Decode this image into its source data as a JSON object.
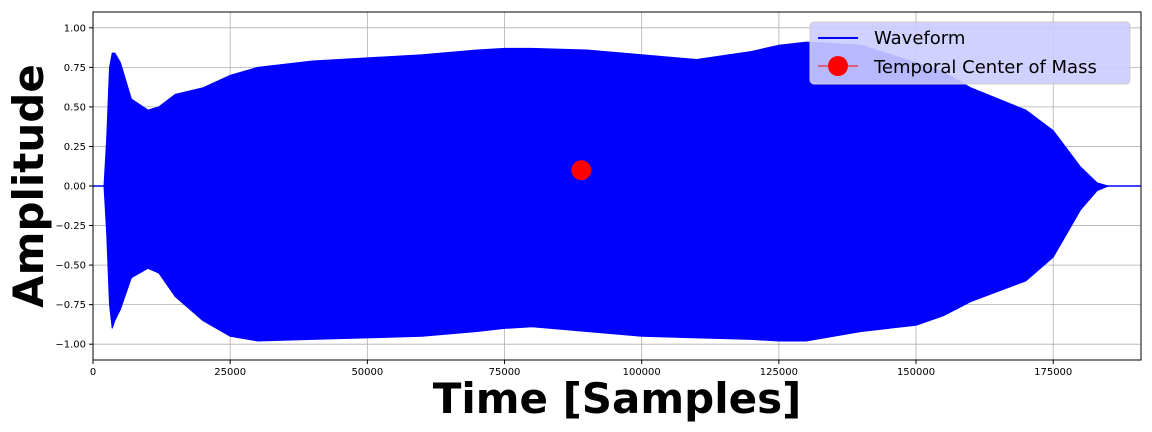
{
  "chart_data": {
    "type": "line",
    "title": "",
    "xlabel": "Time [Samples]",
    "ylabel": "Amplitude",
    "xlim": [
      0,
      191000
    ],
    "ylim": [
      -1.1,
      1.1
    ],
    "x_ticks": [
      0,
      25000,
      50000,
      75000,
      100000,
      125000,
      150000,
      175000
    ],
    "y_ticks": [
      -1.0,
      -0.75,
      -0.5,
      -0.25,
      0.0,
      0.25,
      0.5,
      0.75,
      1.0
    ],
    "x_tick_labels": [
      "0",
      "25000",
      "50000",
      "75000",
      "100000",
      "125000",
      "150000",
      "175000"
    ],
    "y_tick_labels": [
      "−1.00",
      "−0.75",
      "−0.50",
      "−0.25",
      "0.00",
      "0.25",
      "0.50",
      "0.75",
      "1.00"
    ],
    "grid": true,
    "legend_position": "top-right",
    "series": [
      {
        "name": "Waveform",
        "color": "#0000ff",
        "style": "filled-envelope",
        "envelope": {
          "x": [
            0,
            2000,
            2500,
            3000,
            3500,
            4000,
            5000,
            7000,
            10000,
            12000,
            15000,
            20000,
            25000,
            30000,
            40000,
            50000,
            60000,
            70000,
            75000,
            80000,
            90000,
            100000,
            110000,
            120000,
            125000,
            130000,
            135000,
            140000,
            150000,
            155000,
            160000,
            170000,
            175000,
            180000,
            183000,
            185000,
            187000,
            191000
          ],
          "upper": [
            0.0,
            0.0,
            0.3,
            0.75,
            0.84,
            0.84,
            0.78,
            0.55,
            0.48,
            0.5,
            0.58,
            0.62,
            0.7,
            0.75,
            0.79,
            0.81,
            0.83,
            0.86,
            0.87,
            0.87,
            0.86,
            0.83,
            0.8,
            0.85,
            0.89,
            0.91,
            0.9,
            0.89,
            0.78,
            0.72,
            0.62,
            0.48,
            0.35,
            0.12,
            0.02,
            0.0,
            0.0,
            0.0
          ],
          "lower": [
            0.0,
            0.0,
            -0.3,
            -0.75,
            -0.9,
            -0.85,
            -0.78,
            -0.58,
            -0.52,
            -0.55,
            -0.7,
            -0.85,
            -0.95,
            -0.98,
            -0.97,
            -0.96,
            -0.95,
            -0.92,
            -0.9,
            -0.89,
            -0.92,
            -0.95,
            -0.96,
            -0.97,
            -0.98,
            -0.98,
            -0.95,
            -0.92,
            -0.88,
            -0.82,
            -0.73,
            -0.6,
            -0.45,
            -0.15,
            -0.03,
            0.0,
            0.0,
            0.0
          ]
        }
      },
      {
        "name": "Temporal Center of Mass",
        "color": "#ff0000",
        "style": "marker",
        "x": [
          89000
        ],
        "y": [
          0.1
        ]
      }
    ]
  }
}
